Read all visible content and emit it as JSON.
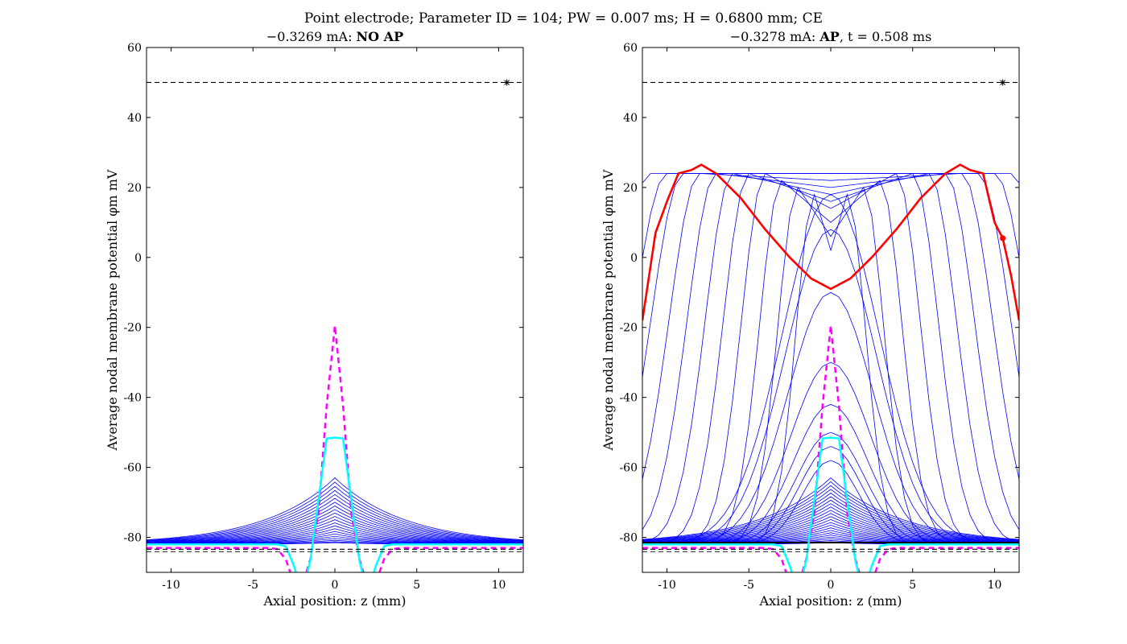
{
  "figure": {
    "suptitle": "Point electrode; Parameter ID = 104; PW = 0.007 ms; H = 0.6800 mm; CE"
  },
  "chart_data": [
    {
      "type": "line",
      "title_prefix": "−0.3269 mA: ",
      "title_bold": "NO AP",
      "title_suffix": "",
      "xlabel": "Axial position: z (mm)",
      "ylabel": "Average nodal membrane potential φm mV",
      "xlim": [
        -11.5,
        11.5
      ],
      "ylim": [
        -90,
        60
      ],
      "xticks": [
        -10,
        -5,
        0,
        5,
        10
      ],
      "yticks": [
        -80,
        -60,
        -40,
        -20,
        0,
        20,
        40,
        60
      ],
      "grid": false,
      "threshold_lines": [
        50,
        -83.4,
        -84.1
      ],
      "marker_star": {
        "x": 10.5,
        "y": 50
      },
      "ap": false,
      "bump_curves": {
        "count": 22,
        "peak_min": -81.5,
        "peak_max": -63.0,
        "rest": -82.0
      },
      "magenta_dashed": {
        "peak": -19.5,
        "rest": -83
      },
      "cyan_solid": {
        "peak": -51.5,
        "rest": -82
      }
    },
    {
      "type": "line",
      "title_prefix": "−0.3278 mA: ",
      "title_bold": "AP",
      "title_suffix": ", t = 0.508 ms",
      "xlabel": "Axial position: z (mm)",
      "ylabel": "Average nodal membrane potential φm mV",
      "xlim": [
        -11.5,
        11.5
      ],
      "ylim": [
        -90,
        60
      ],
      "xticks": [
        -10,
        -5,
        0,
        5,
        10
      ],
      "yticks": [
        -80,
        -60,
        -40,
        -20,
        0,
        20,
        40,
        60
      ],
      "grid": false,
      "threshold_lines": [
        50,
        -83.4,
        -84.1
      ],
      "marker_star": {
        "x": 10.5,
        "y": 50
      },
      "ap": true,
      "bump_curves": {
        "count": 24,
        "peak_min": -81.5,
        "peak_max": -63.0,
        "rest": -82.0
      },
      "rising_peaks": [
        -58,
        -54,
        -50,
        -42,
        -30,
        -10,
        8,
        18
      ],
      "front_positions": [
        1,
        2,
        3,
        4,
        5,
        6,
        7,
        8,
        9,
        10,
        11
      ],
      "magenta_dashed": {
        "peak": -19.5,
        "rest": -83
      },
      "cyan_solid": {
        "peak": -51.5,
        "rest": -82
      },
      "red_final": {
        "x": [
          -11.5,
          -10.7,
          -10.0,
          -9.3,
          -8.5,
          -7.9,
          -7.0,
          -5.5,
          -4.0,
          -2.5,
          -1.2,
          0,
          1.2,
          2.5,
          4.0,
          5.5,
          7.0,
          7.9,
          8.5,
          9.3,
          10.0,
          10.5,
          11.0,
          11.5
        ],
        "y": [
          -18,
          7,
          16,
          24,
          25,
          26.5,
          24,
          17,
          8,
          0,
          -6,
          -9,
          -6,
          0,
          8,
          17,
          24,
          26.5,
          25,
          24,
          10,
          5.5,
          -5,
          -18
        ]
      },
      "red_marker": {
        "x": 10.5,
        "y": 5.5
      },
      "black_rest_line": -81.5
    }
  ]
}
